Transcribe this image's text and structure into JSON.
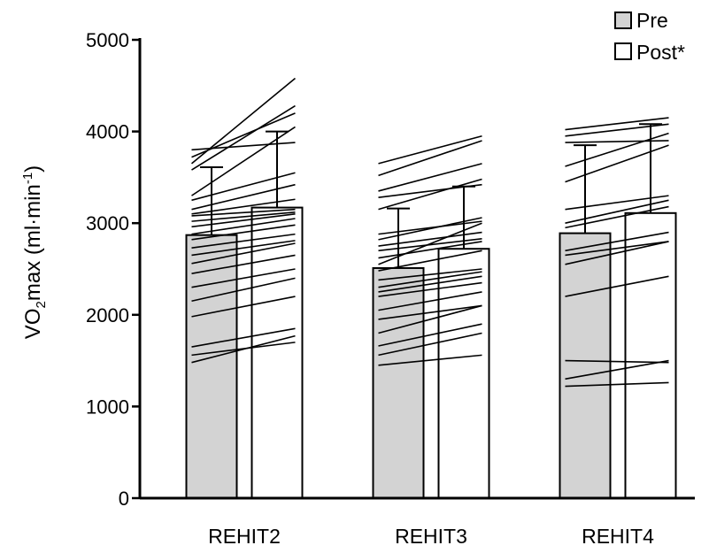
{
  "chart_data": {
    "type": "bar",
    "categories": [
      "REHIT2",
      "REHIT3",
      "REHIT4"
    ],
    "ylabel": {
      "pre": "VO",
      "sub": "2",
      "mid": "max (ml·min",
      "sup": "-1",
      "post": ")"
    },
    "yticks": [
      "0",
      "1000",
      "2000",
      "3000",
      "4000",
      "5000"
    ],
    "ylim": [
      0,
      5000
    ],
    "series": [
      {
        "name": "Pre",
        "fill": "#d3d3d3",
        "values": [
          2870,
          2510,
          2890
        ],
        "sd": [
          740,
          650,
          960
        ]
      },
      {
        "name": "Post*",
        "fill": "#ffffff",
        "values": [
          3170,
          2720,
          3110
        ],
        "sd": [
          830,
          680,
          970
        ]
      }
    ],
    "individual_lines": [
      [
        [
          3800,
          3880
        ],
        [
          3720,
          4200
        ],
        [
          3650,
          4580
        ],
        [
          3580,
          4280
        ],
        [
          3300,
          4050
        ],
        [
          3250,
          3550
        ],
        [
          3150,
          3420
        ],
        [
          3100,
          3260
        ],
        [
          3080,
          3150
        ],
        [
          3020,
          3120
        ],
        [
          2960,
          3100
        ],
        [
          2880,
          3050
        ],
        [
          2820,
          2980
        ],
        [
          2730,
          2880
        ],
        [
          2650,
          2810
        ],
        [
          2560,
          2780
        ],
        [
          2450,
          2650
        ],
        [
          2300,
          2500
        ],
        [
          2150,
          2400
        ],
        [
          1980,
          2200
        ],
        [
          1650,
          1850
        ],
        [
          1560,
          1700
        ],
        [
          1480,
          1770
        ]
      ],
      [
        [
          3650,
          3950
        ],
        [
          3520,
          3900
        ],
        [
          3350,
          3650
        ],
        [
          3280,
          3420
        ],
        [
          3150,
          3480
        ],
        [
          2880,
          3020
        ],
        [
          2820,
          3060
        ],
        [
          2750,
          2900
        ],
        [
          2700,
          2830
        ],
        [
          2620,
          2800
        ],
        [
          2550,
          3000
        ],
        [
          2480,
          2700
        ],
        [
          2380,
          2500
        ],
        [
          2300,
          2470
        ],
        [
          2250,
          2420
        ],
        [
          2200,
          2350
        ],
        [
          2050,
          2250
        ],
        [
          1950,
          2100
        ],
        [
          1800,
          2100
        ],
        [
          1660,
          1900
        ],
        [
          1560,
          1800
        ],
        [
          1450,
          1560
        ]
      ],
      [
        [
          4020,
          4150
        ],
        [
          3950,
          4080
        ],
        [
          3880,
          3900
        ],
        [
          3620,
          3980
        ],
        [
          3450,
          3850
        ],
        [
          3150,
          3300
        ],
        [
          3000,
          3250
        ],
        [
          2950,
          3180
        ],
        [
          2700,
          2900
        ],
        [
          2650,
          2800
        ],
        [
          2550,
          2800
        ],
        [
          2200,
          2420
        ],
        [
          1500,
          1480
        ],
        [
          1300,
          1500
        ],
        [
          1220,
          1260
        ]
      ]
    ]
  },
  "legend": [
    {
      "label": "Pre",
      "fill": "#d3d3d3"
    },
    {
      "label": "Post*",
      "fill": "#ffffff"
    }
  ]
}
